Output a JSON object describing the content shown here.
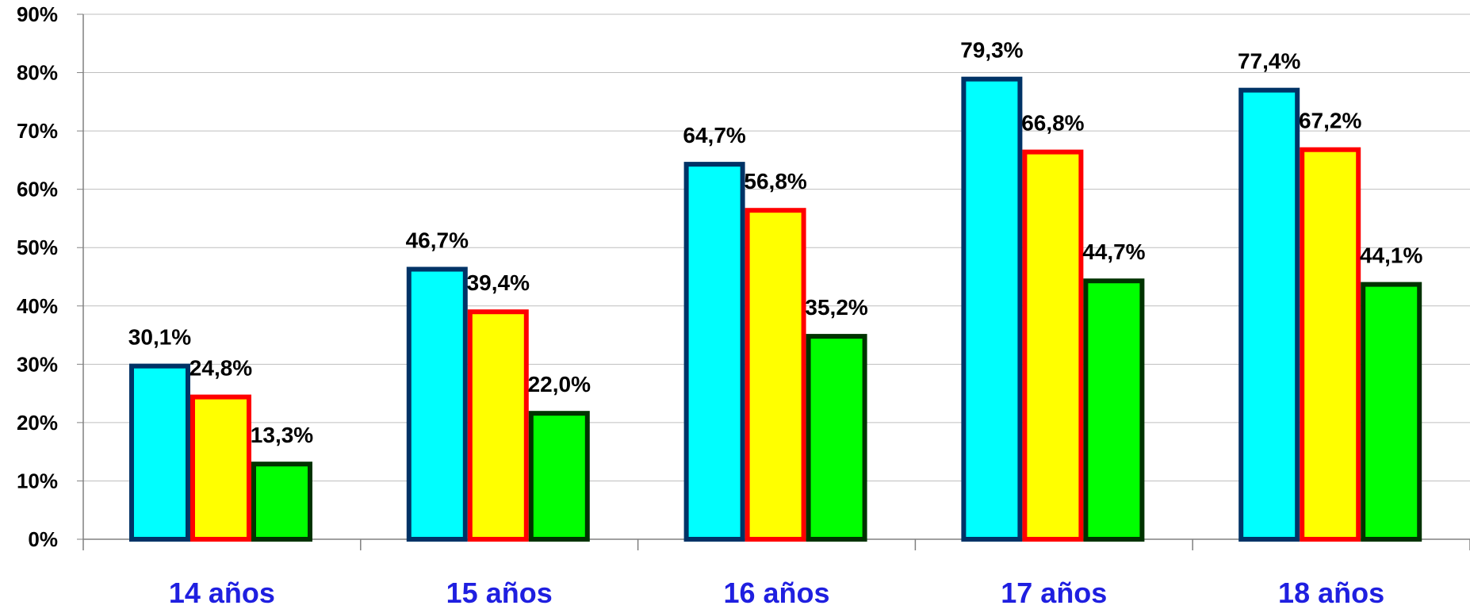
{
  "chart_data": {
    "type": "bar",
    "categories": [
      "14 años",
      "15 años",
      "16 años",
      "17 años",
      "18 años"
    ],
    "series": [
      {
        "values": [
          30.1,
          46.7,
          64.7,
          79.3,
          77.4
        ],
        "labels": [
          "30,1%",
          "46,7%",
          "64,7%",
          "79,3%",
          "77,4%"
        ],
        "fill": "#00FFFF",
        "stroke": "#003366"
      },
      {
        "values": [
          24.8,
          39.4,
          56.8,
          66.8,
          67.2
        ],
        "labels": [
          "24,8%",
          "39,4%",
          "56,8%",
          "66,8%",
          "67,2%"
        ],
        "fill": "#FFFF00",
        "stroke": "#FF0000"
      },
      {
        "values": [
          13.3,
          22.0,
          35.2,
          44.7,
          44.1
        ],
        "labels": [
          "13,3%",
          "22,0%",
          "35,2%",
          "44,7%",
          "44,1%"
        ],
        "fill": "#00FF00",
        "stroke": "#003300"
      }
    ],
    "ylim": [
      0,
      90
    ],
    "yticks": [
      0,
      10,
      20,
      30,
      40,
      50,
      60,
      70,
      80,
      90
    ],
    "ytick_labels": [
      "0%",
      "10%",
      "20%",
      "30%",
      "40%",
      "50%",
      "60%",
      "70%",
      "80%",
      "90%"
    ],
    "grid": true,
    "legend": "none",
    "colors": {
      "category_label": "#1F1FE0",
      "gridline": "#BFBFBF",
      "axis": "#808080"
    }
  }
}
